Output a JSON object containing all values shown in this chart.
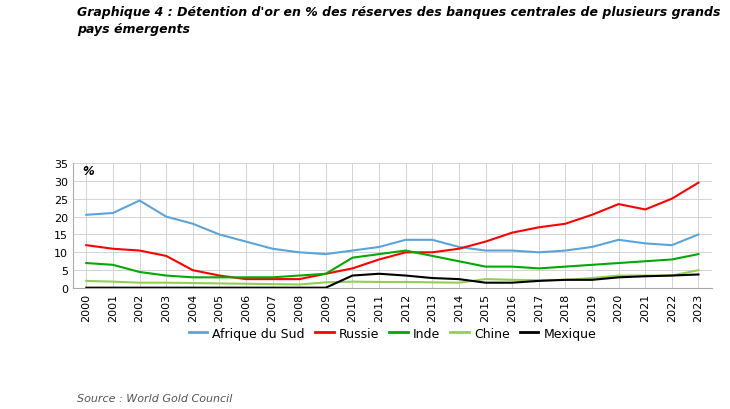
{
  "title": "Graphique 4 : Détention d'or en % des réserves des banques centrales de plusieurs grands\npays émergents",
  "source": "Source : World Gold Council",
  "ylabel": "%",
  "ylim": [
    0,
    35
  ],
  "yticks": [
    0,
    5,
    10,
    15,
    20,
    25,
    30,
    35
  ],
  "years": [
    2000,
    2001,
    2002,
    2003,
    2004,
    2005,
    2006,
    2007,
    2008,
    2009,
    2010,
    2011,
    2012,
    2013,
    2014,
    2015,
    2016,
    2017,
    2018,
    2019,
    2020,
    2021,
    2022,
    2023
  ],
  "series": {
    "Afrique du Sud": {
      "color": "#5BA3D9",
      "data": [
        20.5,
        21.0,
        24.5,
        20.0,
        18.0,
        15.0,
        13.0,
        11.0,
        10.0,
        9.5,
        10.5,
        11.5,
        13.5,
        13.5,
        11.5,
        10.5,
        10.5,
        10.0,
        10.5,
        11.5,
        13.5,
        12.5,
        12.0,
        15.0
      ]
    },
    "Russie": {
      "color": "#FF0000",
      "data": [
        12.0,
        11.0,
        10.5,
        9.0,
        5.0,
        3.5,
        2.5,
        2.5,
        2.5,
        4.0,
        5.5,
        8.0,
        10.0,
        10.0,
        11.0,
        13.0,
        15.5,
        17.0,
        18.0,
        20.5,
        23.5,
        22.0,
        25.0,
        29.5
      ]
    },
    "Inde": {
      "color": "#00AA00",
      "data": [
        7.0,
        6.5,
        4.5,
        3.5,
        3.0,
        3.0,
        3.0,
        3.0,
        3.5,
        4.0,
        8.5,
        9.5,
        10.5,
        9.0,
        7.5,
        6.0,
        6.0,
        5.5,
        6.0,
        6.5,
        7.0,
        7.5,
        8.0,
        9.5
      ]
    },
    "Chine": {
      "color": "#92D050",
      "data": [
        2.0,
        1.8,
        1.5,
        1.5,
        1.4,
        1.3,
        1.2,
        1.1,
        1.0,
        1.6,
        1.8,
        1.7,
        1.7,
        1.6,
        1.5,
        2.5,
        2.3,
        2.2,
        2.3,
        2.8,
        3.5,
        3.5,
        3.5,
        5.0
      ]
    },
    "Mexique": {
      "color": "#000000",
      "data": [
        0.1,
        0.1,
        0.1,
        0.1,
        0.1,
        0.1,
        0.1,
        0.1,
        0.1,
        0.1,
        3.5,
        4.0,
        3.5,
        2.8,
        2.5,
        1.5,
        1.5,
        2.0,
        2.3,
        2.3,
        3.0,
        3.3,
        3.5,
        3.8
      ]
    }
  },
  "background_color": "#FFFFFF",
  "grid_color": "#CCCCCC",
  "title_fontsize": 9.0,
  "axis_fontsize": 8.5,
  "legend_fontsize": 9.0,
  "source_fontsize": 8.0
}
